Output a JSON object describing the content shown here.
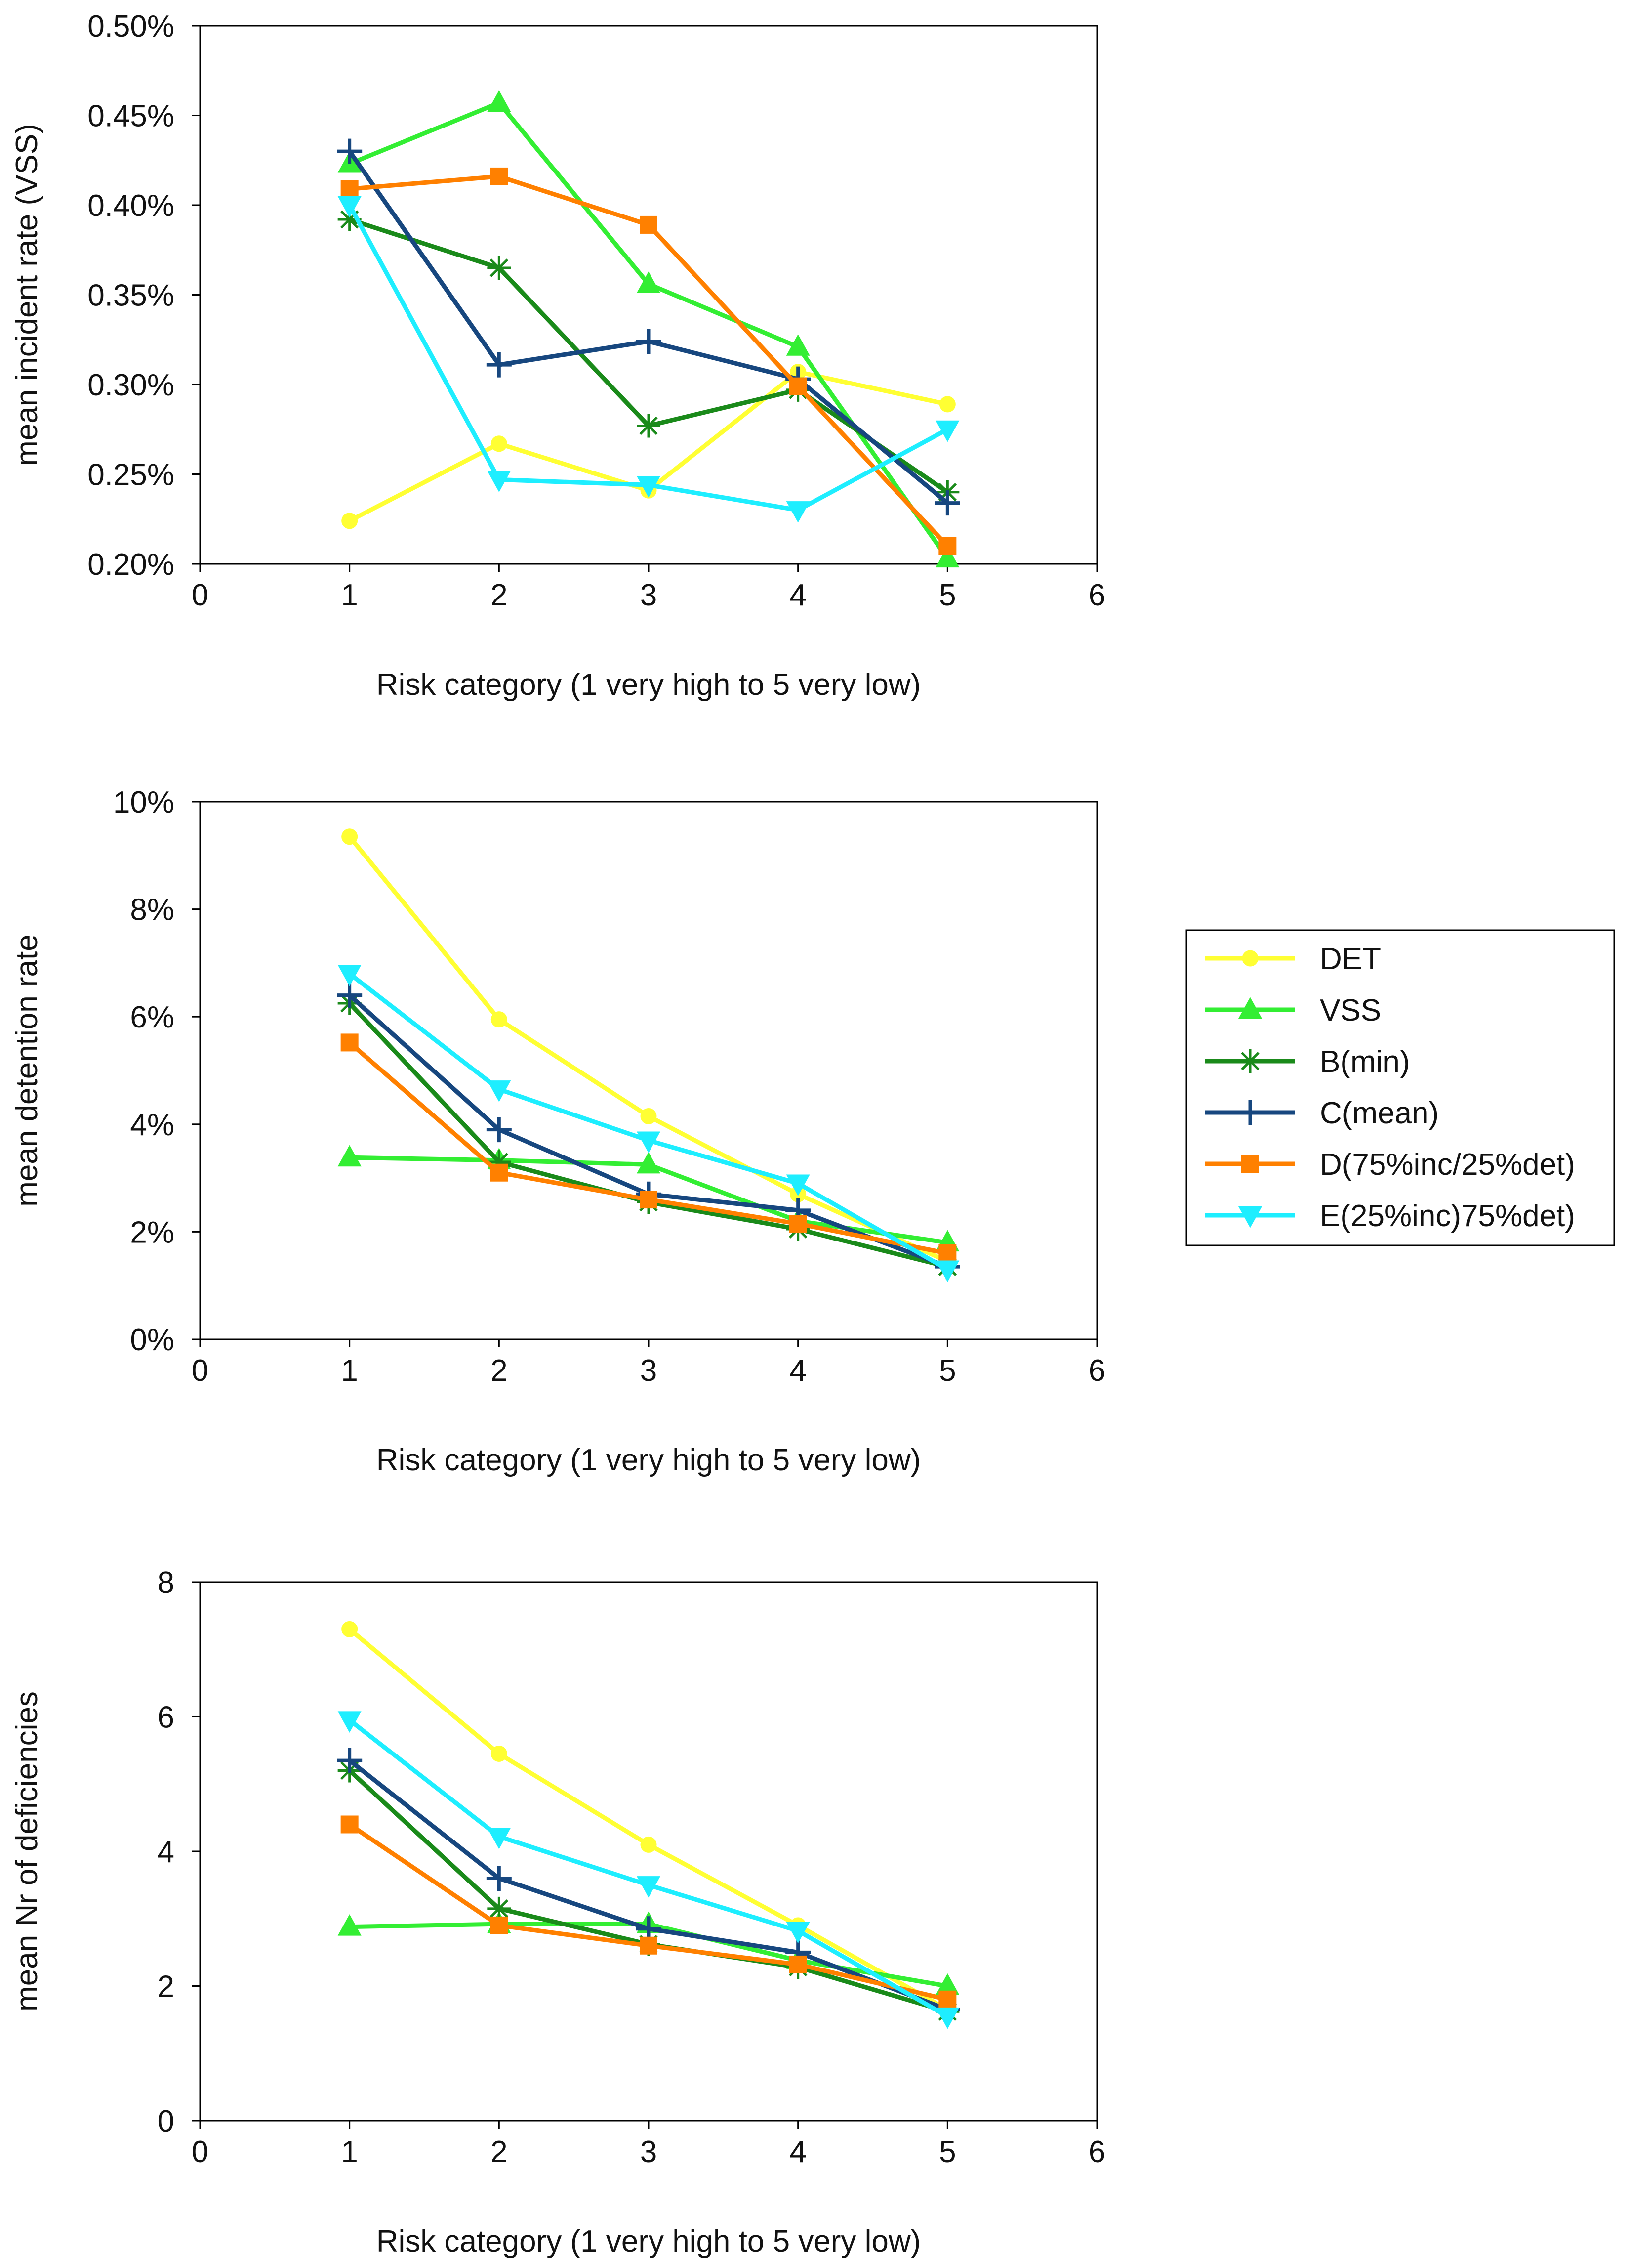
{
  "series_styles": [
    {
      "name": "DET",
      "color": "#ffff33",
      "marker": "circle"
    },
    {
      "name": "VSS",
      "color": "#33ee33",
      "marker": "triangle-up"
    },
    {
      "name": "B(min)",
      "color": "#1a8a1a",
      "marker": "asterisk"
    },
    {
      "name": "C(mean)",
      "color": "#17477f",
      "marker": "plus"
    },
    {
      "name": "D(75%inc/25%det)",
      "color": "#ff8000",
      "marker": "square"
    },
    {
      "name": "E(25%inc)75%det)",
      "color": "#1eeeff",
      "marker": "triangle-down"
    }
  ],
  "chart_data": [
    {
      "type": "line",
      "title": "",
      "xlabel": "Risk category (1 very high to 5 very low)",
      "ylabel": "mean incident rate (VSS)",
      "xlim": [
        0,
        6
      ],
      "xticks": [
        "0",
        "1",
        "2",
        "3",
        "4",
        "5",
        "6"
      ],
      "ylim": [
        0.2,
        0.5
      ],
      "yticks": [
        "0.20%",
        "0.25%",
        "0.30%",
        "0.35%",
        "0.40%",
        "0.45%",
        "0.50%"
      ],
      "x": [
        1,
        2,
        3,
        4,
        5
      ],
      "series": [
        {
          "name": "DET",
          "values": [
            0.224,
            0.267,
            0.241,
            0.307,
            0.289
          ]
        },
        {
          "name": "VSS",
          "values": [
            0.423,
            0.457,
            0.356,
            0.321,
            0.203
          ]
        },
        {
          "name": "B(min)",
          "values": [
            0.392,
            0.365,
            0.277,
            0.297,
            0.24
          ]
        },
        {
          "name": "C(mean)",
          "values": [
            0.43,
            0.311,
            0.324,
            0.303,
            0.234
          ]
        },
        {
          "name": "D(75%inc/25%det)",
          "values": [
            0.409,
            0.416,
            0.389,
            0.299,
            0.21
          ]
        },
        {
          "name": "E(25%inc)75%det)",
          "values": [
            0.4,
            0.247,
            0.244,
            0.23,
            0.275
          ]
        }
      ]
    },
    {
      "type": "line",
      "title": "",
      "xlabel": "Risk category (1 very high to 5 very low)",
      "ylabel": "mean detention rate",
      "xlim": [
        0,
        6
      ],
      "xticks": [
        "0",
        "1",
        "2",
        "3",
        "4",
        "5",
        "6"
      ],
      "ylim": [
        0,
        10
      ],
      "yticks": [
        "0%",
        "2%",
        "4%",
        "6%",
        "8%",
        "10%"
      ],
      "x": [
        1,
        2,
        3,
        4,
        5
      ],
      "series": [
        {
          "name": "DET",
          "values": [
            9.35,
            5.95,
            4.15,
            2.7,
            1.45
          ]
        },
        {
          "name": "VSS",
          "values": [
            3.38,
            3.33,
            3.25,
            2.2,
            1.8
          ]
        },
        {
          "name": "B(min)",
          "values": [
            6.25,
            3.3,
            2.55,
            2.05,
            1.35
          ]
        },
        {
          "name": "C(mean)",
          "values": [
            6.4,
            3.9,
            2.7,
            2.4,
            1.35
          ]
        },
        {
          "name": "D(75%inc/25%det)",
          "values": [
            5.52,
            3.1,
            2.6,
            2.15,
            1.6
          ]
        },
        {
          "name": "E(25%inc)75%det)",
          "values": [
            6.8,
            4.65,
            3.7,
            2.9,
            1.3
          ]
        }
      ]
    },
    {
      "type": "line",
      "title": "",
      "xlabel": "Risk category (1 very high to 5 very low)",
      "ylabel": "mean Nr of deficiencies",
      "xlim": [
        0,
        6
      ],
      "xticks": [
        "0",
        "1",
        "2",
        "3",
        "4",
        "5",
        "6"
      ],
      "ylim": [
        0,
        8
      ],
      "yticks": [
        "0",
        "2",
        "4",
        "6",
        "8"
      ],
      "x": [
        1,
        2,
        3,
        4,
        5
      ],
      "series": [
        {
          "name": "DET",
          "values": [
            7.3,
            5.45,
            4.1,
            2.9,
            1.65
          ]
        },
        {
          "name": "VSS",
          "values": [
            2.88,
            2.92,
            2.92,
            2.38,
            2.0
          ]
        },
        {
          "name": "B(min)",
          "values": [
            5.2,
            3.15,
            2.62,
            2.28,
            1.62
          ]
        },
        {
          "name": "C(mean)",
          "values": [
            5.35,
            3.6,
            2.85,
            2.5,
            1.65
          ]
        },
        {
          "name": "D(75%inc/25%det)",
          "values": [
            4.4,
            2.9,
            2.6,
            2.32,
            1.8
          ]
        },
        {
          "name": "E(25%inc)75%det)",
          "values": [
            5.95,
            4.22,
            3.5,
            2.82,
            1.55
          ]
        }
      ]
    }
  ]
}
